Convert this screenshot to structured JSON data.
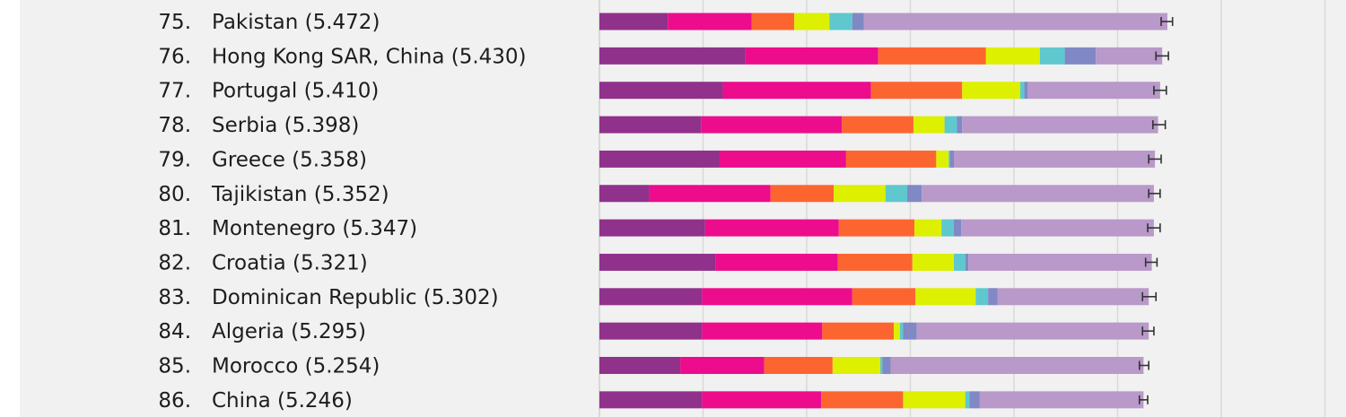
{
  "chart_data": {
    "type": "bar",
    "orientation": "horizontal",
    "stacked": true,
    "title": "",
    "xlabel": "",
    "ylabel": "",
    "grid": true,
    "xlim": [
      0,
      8.25
    ],
    "xgrid": [
      1,
      2,
      3,
      4,
      5,
      6,
      7,
      8
    ],
    "segment_colors": [
      "#90318c",
      "#ec0c8c",
      "#fd6530",
      "#dcf000",
      "#5ec8ce",
      "#8088c5",
      "#b899c9"
    ],
    "error_bar_color": "#333333",
    "rows": [
      {
        "rank": "75.",
        "label": "Pakistan (5.472)",
        "score": 5.472,
        "segments": [
          0.66,
          0.81,
          0.41,
          0.34,
          0.22,
          0.11,
          2.93
        ],
        "ci": [
          5.42,
          5.53
        ]
      },
      {
        "rank": "76.",
        "label": "Hong Kong SAR, China (5.430)",
        "segments": [
          1.41,
          1.28,
          1.04,
          0.52,
          0.24,
          0.3,
          0.64
        ],
        "score": 5.43,
        "ci": [
          5.37,
          5.49
        ]
      },
      {
        "rank": "77.",
        "label": "Portugal (5.410)",
        "score": 5.41,
        "segments": [
          1.19,
          1.43,
          0.88,
          0.56,
          0.04,
          0.03,
          1.28
        ],
        "ci": [
          5.35,
          5.47
        ]
      },
      {
        "rank": "78.",
        "label": "Serbia (5.398)",
        "score": 5.398,
        "segments": [
          0.98,
          1.36,
          0.69,
          0.3,
          0.12,
          0.05,
          1.89
        ],
        "ci": [
          5.34,
          5.46
        ]
      },
      {
        "rank": "79.",
        "label": "Greece (5.358)",
        "score": 5.358,
        "segments": [
          1.16,
          1.22,
          0.87,
          0.12,
          0.01,
          0.04,
          1.94
        ],
        "ci": [
          5.3,
          5.42
        ]
      },
      {
        "rank": "80.",
        "label": "Tajikistan (5.352)",
        "score": 5.352,
        "segments": [
          0.48,
          1.17,
          0.61,
          0.5,
          0.21,
          0.14,
          2.24
        ],
        "ci": [
          5.3,
          5.41
        ]
      },
      {
        "rank": "81.",
        "label": "Montenegro (5.347)",
        "score": 5.347,
        "segments": [
          1.02,
          1.29,
          0.73,
          0.26,
          0.12,
          0.07,
          1.86
        ],
        "ci": [
          5.29,
          5.41
        ]
      },
      {
        "rank": "82.",
        "label": "Croatia (5.321)",
        "score": 5.321,
        "segments": [
          1.12,
          1.18,
          0.72,
          0.4,
          0.11,
          0.03,
          1.77
        ],
        "ci": [
          5.27,
          5.38
        ]
      },
      {
        "rank": "83.",
        "label": "Dominican Republic (5.302)",
        "score": 5.302,
        "segments": [
          0.99,
          1.45,
          0.61,
          0.58,
          0.12,
          0.09,
          1.46
        ],
        "ci": [
          5.24,
          5.37
        ]
      },
      {
        "rank": "84.",
        "label": "Algeria (5.295)",
        "score": 5.295,
        "segments": [
          0.99,
          1.16,
          0.69,
          0.06,
          0.03,
          0.13,
          2.24
        ],
        "ci": [
          5.24,
          5.35
        ]
      },
      {
        "rank": "85.",
        "label": "Morocco (5.254)",
        "score": 5.254,
        "segments": [
          0.78,
          0.81,
          0.66,
          0.46,
          0.02,
          0.08,
          2.44
        ],
        "ci": [
          5.21,
          5.3
        ]
      },
      {
        "rank": "86.",
        "label": "China (5.246)",
        "score": 5.246,
        "segments": [
          0.99,
          1.15,
          0.79,
          0.6,
          0.04,
          0.1,
          1.58
        ],
        "ci": [
          5.21,
          5.29
        ]
      }
    ]
  }
}
